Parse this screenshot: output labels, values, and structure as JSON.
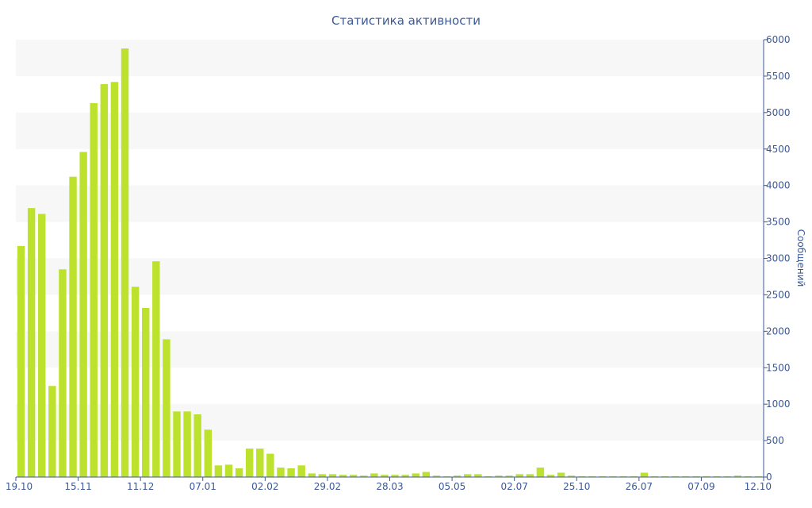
{
  "chart_data": {
    "type": "bar",
    "title": "Статистика активности",
    "xlabel": "",
    "ylabel": "Сообщений",
    "y_axis_position": "right",
    "ylim": [
      0,
      6000
    ],
    "yticks": [
      0,
      500,
      1000,
      1500,
      2000,
      2500,
      3000,
      3500,
      4000,
      4500,
      5000,
      5500,
      6000
    ],
    "x_tick_labels": [
      "19.10",
      "15.11",
      "11.12",
      "07.01",
      "02.02",
      "29.02",
      "28.03",
      "05.05",
      "02.07",
      "25.10",
      "26.07",
      "07.09",
      "12.10"
    ],
    "grid": "alternating horizontal bands",
    "bar_color": "#bce22e",
    "band_color": "#f7f7f7",
    "axis_color": "#3b5998",
    "values": [
      3170,
      3690,
      3610,
      1250,
      2850,
      4120,
      4460,
      5130,
      5390,
      5420,
      5880,
      2610,
      2320,
      2960,
      1890,
      900,
      900,
      860,
      650,
      160,
      170,
      120,
      390,
      390,
      320,
      130,
      120,
      160,
      50,
      40,
      40,
      30,
      30,
      20,
      50,
      30,
      30,
      30,
      50,
      70,
      20,
      10,
      20,
      40,
      40,
      10,
      20,
      20,
      40,
      40,
      130,
      30,
      60,
      20,
      10,
      10,
      10,
      10,
      10,
      10,
      60,
      10,
      10,
      10,
      10,
      10,
      10,
      10,
      10,
      20,
      10,
      10
    ]
  }
}
